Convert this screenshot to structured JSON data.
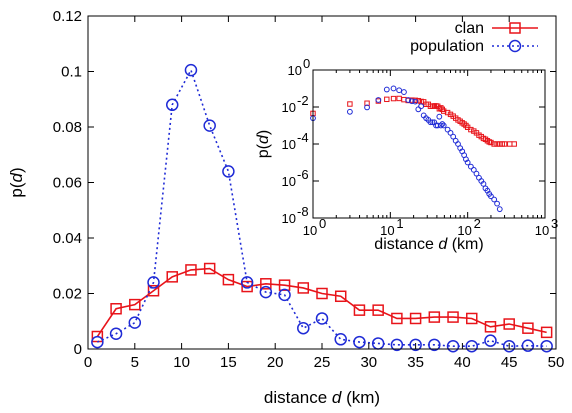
{
  "chart_data": [
    {
      "type": "line",
      "xlabel": "distance d (km)",
      "ylabel": "p(d)",
      "xlim": [
        0,
        50
      ],
      "ylim": [
        0,
        0.12
      ],
      "x_ticks": [
        0,
        5,
        10,
        15,
        20,
        25,
        30,
        35,
        40,
        45,
        50
      ],
      "y_ticks": [
        0,
        0.02,
        0.04,
        0.06,
        0.08,
        0.1,
        0.12
      ],
      "grid": false,
      "legend": "top-right",
      "series": [
        {
          "name": "clan",
          "color": "#e8141a",
          "marker": "square",
          "line": "solid",
          "x": [
            1,
            3,
            5,
            7,
            9,
            11,
            13,
            15,
            17,
            19,
            21,
            23,
            25,
            27,
            29,
            31,
            33,
            35,
            37,
            39,
            41,
            43,
            45,
            47,
            49
          ],
          "y": [
            0.0045,
            0.0145,
            0.016,
            0.021,
            0.026,
            0.0285,
            0.029,
            0.025,
            0.0225,
            0.0235,
            0.023,
            0.022,
            0.02,
            0.019,
            0.014,
            0.014,
            0.011,
            0.011,
            0.0115,
            0.0115,
            0.011,
            0.008,
            0.009,
            0.0075,
            0.006
          ]
        },
        {
          "name": "population",
          "color": "#1f2bd6",
          "marker": "circle",
          "line": "dotted",
          "x": [
            1,
            3,
            5,
            7,
            9,
            11,
            13,
            15,
            17,
            19,
            21,
            23,
            25,
            27,
            29,
            31,
            33,
            35,
            37,
            39,
            41,
            43,
            45,
            47,
            49
          ],
          "y": [
            0.0025,
            0.0055,
            0.0095,
            0.024,
            0.088,
            0.1005,
            0.0805,
            0.064,
            0.024,
            0.0205,
            0.0195,
            0.0075,
            0.011,
            0.0035,
            0.0025,
            0.002,
            0.0015,
            0.0015,
            0.0015,
            0.001,
            0.001,
            0.003,
            0.001,
            0.0012,
            0.001
          ]
        }
      ]
    },
    {
      "type": "scatter",
      "xlabel": "distance d (km)",
      "ylabel": "p(d)",
      "x_scale": "log",
      "y_scale": "log",
      "xlim": [
        1,
        1000
      ],
      "ylim": [
        1e-08,
        1
      ],
      "x_ticks": [
        1,
        10,
        100,
        1000
      ],
      "x_tick_labels": [
        "10^0",
        "10^1",
        "10^2",
        "10^3"
      ],
      "y_ticks": [
        1e-08,
        1e-06,
        0.0001,
        0.01,
        1
      ],
      "y_tick_labels": [
        "10^-8",
        "10^-6",
        "10^-4",
        "10^-2",
        "10^0"
      ],
      "series": [
        {
          "name": "clan",
          "color": "#e8141a",
          "marker": "square",
          "x": [
            1,
            3,
            5,
            7,
            9,
            11,
            13,
            15,
            17,
            19,
            21,
            23,
            25,
            27,
            29,
            31,
            33,
            35,
            37,
            39,
            41,
            43,
            45,
            47,
            49,
            55,
            60,
            65,
            70,
            75,
            80,
            85,
            90,
            95,
            100,
            110,
            120,
            130,
            140,
            150,
            160,
            170,
            180,
            190,
            200,
            220,
            240,
            260,
            280,
            300,
            350,
            400
          ],
          "y": [
            0.0045,
            0.0145,
            0.016,
            0.021,
            0.026,
            0.0285,
            0.029,
            0.025,
            0.0225,
            0.0235,
            0.023,
            0.022,
            0.02,
            0.019,
            0.014,
            0.014,
            0.011,
            0.011,
            0.0115,
            0.0115,
            0.011,
            0.008,
            0.009,
            0.0075,
            0.006,
            0.005,
            0.004,
            0.0032,
            0.0025,
            0.002,
            0.0017,
            0.0014,
            0.0012,
            0.001,
            0.0008,
            0.0006,
            0.0005,
            0.0004,
            0.0003,
            0.00025,
            0.0002,
            0.00018,
            0.00015,
            0.00013,
            0.00012,
            0.0001,
            0.0001,
            0.0001,
            0.0001,
            0.0001,
            0.0001,
            0.0001
          ]
        },
        {
          "name": "population",
          "color": "#1f2bd6",
          "marker": "circle",
          "x": [
            1,
            3,
            5,
            7,
            9,
            11,
            13,
            15,
            17,
            19,
            21,
            23,
            25,
            27,
            29,
            31,
            33,
            35,
            37,
            39,
            41,
            43,
            45,
            47,
            49,
            55,
            60,
            65,
            70,
            75,
            80,
            85,
            90,
            95,
            100,
            110,
            120,
            130,
            140,
            150,
            160,
            170,
            180,
            190,
            200,
            220,
            240,
            260
          ],
          "y": [
            0.0025,
            0.0055,
            0.0095,
            0.024,
            0.088,
            0.1005,
            0.0805,
            0.064,
            0.024,
            0.0205,
            0.0195,
            0.0075,
            0.011,
            0.0035,
            0.0025,
            0.002,
            0.0015,
            0.0015,
            0.0015,
            0.001,
            0.001,
            0.003,
            0.001,
            0.0012,
            0.001,
            0.0006,
            0.0004,
            0.00025,
            0.00015,
            0.0001,
            6e-05,
            4e-05,
            2.5e-05,
            1.5e-05,
            1e-05,
            6e-06,
            4e-06,
            2.5e-06,
            1.5e-06,
            1e-06,
            7e-07,
            4e-07,
            3e-07,
            2e-07,
            1.5e-07,
            1e-07,
            6e-08,
            3e-08
          ]
        }
      ]
    }
  ]
}
